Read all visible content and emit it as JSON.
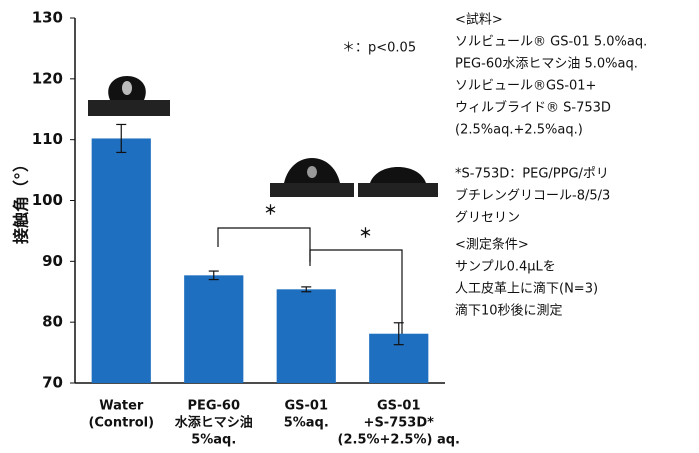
{
  "chart_data": {
    "type": "bar",
    "categories": [
      [
        "Water",
        "(Control)"
      ],
      [
        "PEG-60",
        "水添ヒマシ油",
        "5%aq."
      ],
      [
        "GS-01",
        "5%aq."
      ],
      [
        "GS-01",
        "+S-753D*",
        "(2.5%+2.5%) aq."
      ]
    ],
    "values": [
      110.2,
      87.7,
      85.4,
      78.1
    ],
    "errors": [
      2.3,
      0.7,
      0.4,
      1.8
    ],
    "color": "#1f6fc0",
    "ylabel": "接触角（°）",
    "ylim": [
      70,
      130
    ],
    "yticks": [
      70,
      80,
      90,
      100,
      110,
      120,
      130
    ],
    "significance_note": "＊：p<0.05",
    "significance_labels": [
      "＊",
      "＊"
    ],
    "notes": [
      "<試料>",
      "ソルビュール® GS-01 5.0%aq.",
      "PEG-60水添ヒマシ油 5.0%aq.",
      "ソルビュール®GS-01+",
      "ウィルブライド® S-753D",
      "(2.5%aq.+2.5%aq.)",
      "*S-753D：PEG/PPG/ポリ",
      "ブチレングリコール-8/5/3",
      "グリセリン",
      "<測定条件>",
      "サンプル0.4μLを",
      "人工皮革上に滴下(N=3)",
      "滴下10秒後に測定"
    ]
  }
}
